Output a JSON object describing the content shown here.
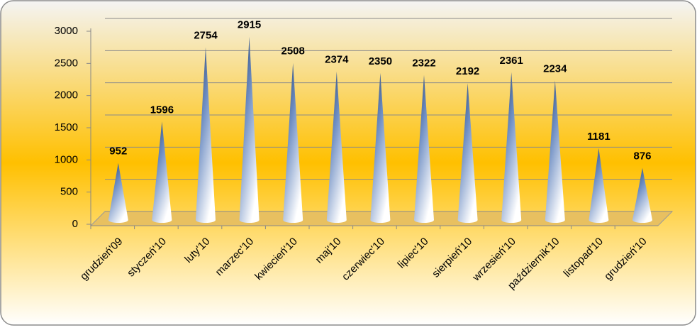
{
  "chart_data": {
    "type": "cone",
    "categories": [
      "grudzień'09",
      "styczeń'10",
      "luty'10",
      "marzec'10",
      "kwiecień'10",
      "maj'10",
      "czerwiec'10",
      "lipiec'10",
      "sierpień'10",
      "wrzesień'10",
      "październik'10",
      "listopad'10",
      "grudzień'10"
    ],
    "values": [
      952,
      1596,
      2754,
      2915,
      2508,
      2374,
      2350,
      2322,
      2192,
      2361,
      2234,
      1181,
      876
    ],
    "ylim": [
      0,
      3000
    ],
    "yticks": [
      0,
      500,
      1000,
      1500,
      2000,
      2500,
      3000
    ],
    "grid": true,
    "color": "#1f3864"
  }
}
